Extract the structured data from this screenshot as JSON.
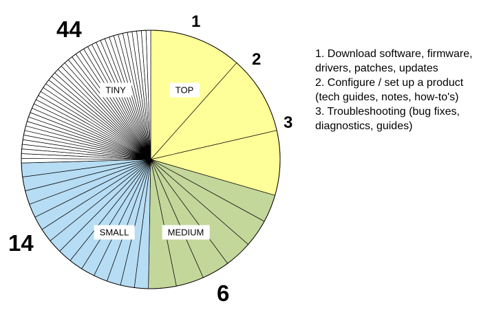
{
  "chart_data": {
    "type": "pie",
    "start_angle_deg": 90,
    "direction": "clockwise",
    "groups": [
      {
        "key": "top",
        "label": "TOP",
        "count_label": "",
        "color": "#FFFF99",
        "slices": [
          {
            "rank": "1",
            "value": 10.0
          },
          {
            "rank": "2",
            "value": 8.5
          },
          {
            "rank": "3",
            "value": 7.0
          }
        ]
      },
      {
        "key": "medium",
        "label": "MEDIUM",
        "count_label": "6",
        "color": "#C4D79B",
        "slices": [
          {
            "value": 3.0
          },
          {
            "value": 3.0
          },
          {
            "value": 3.0
          },
          {
            "value": 3.0
          },
          {
            "value": 3.0
          },
          {
            "value": 3.0
          }
        ]
      },
      {
        "key": "small",
        "label": "SMALL",
        "count_label": "14",
        "color": "#B7DDF4",
        "slices": [
          {
            "value": 1.5
          },
          {
            "value": 1.5
          },
          {
            "value": 1.5
          },
          {
            "value": 1.5
          },
          {
            "value": 1.5
          },
          {
            "value": 1.5
          },
          {
            "value": 1.5
          },
          {
            "value": 1.5
          },
          {
            "value": 1.5
          },
          {
            "value": 1.5
          },
          {
            "value": 1.5
          },
          {
            "value": 1.5
          },
          {
            "value": 1.5
          },
          {
            "value": 1.5
          }
        ]
      },
      {
        "key": "tiny",
        "label": "TINY",
        "count_label": "44",
        "color": "#FFFFFF",
        "slices_count": 44,
        "slice_value": 0.5
      }
    ]
  },
  "legend": {
    "items": [
      "1.  Download software, firmware, drivers, patches, updates",
      "2.  Configure / set up a product  (tech guides, notes, how-to's)",
      "3.  Troubleshooting (bug fixes, diagnostics, guides)"
    ]
  }
}
